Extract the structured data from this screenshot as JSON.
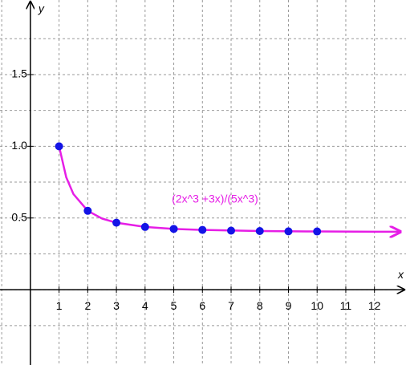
{
  "chart_data": {
    "type": "line",
    "annotation": "(2x^3 +3x)/(5x^3)",
    "annotation_color": "#e61ee6",
    "x_label": "x",
    "y_label": "y",
    "xlim": [
      -1.06,
      13.1
    ],
    "ylim": [
      -0.525,
      2.02
    ],
    "xticks": [
      1,
      2,
      3,
      4,
      5,
      6,
      7,
      8,
      9,
      10,
      11,
      12
    ],
    "yticks": [
      0.5,
      {
        "value": 1,
        "label": "1.0"
      },
      1.5
    ],
    "x_minor_grid": [
      -1,
      0
    ],
    "y_minor_grid": [
      -0.25,
      0,
      0.25,
      0.75,
      1.25,
      1.75
    ],
    "grid": true,
    "series": [
      {
        "mode": "curve",
        "color": "#e61ee6",
        "x": [
          1,
          1.25,
          1.5,
          2,
          2.5,
          3,
          4,
          5,
          6,
          8,
          10,
          12,
          12.9
        ],
        "values": [
          1,
          0.784,
          0.667,
          0.55,
          0.496,
          0.467,
          0.4375,
          0.424,
          0.417,
          0.409,
          0.406,
          0.404,
          0.404
        ]
      },
      {
        "mode": "points",
        "color": "#1414e6",
        "x": [
          1,
          2,
          3,
          4,
          5,
          6,
          7,
          8,
          9,
          10
        ],
        "values": [
          1,
          0.55,
          0.467,
          0.4375,
          0.424,
          0.417,
          0.412,
          0.409,
          0.407,
          0.406
        ]
      }
    ]
  }
}
